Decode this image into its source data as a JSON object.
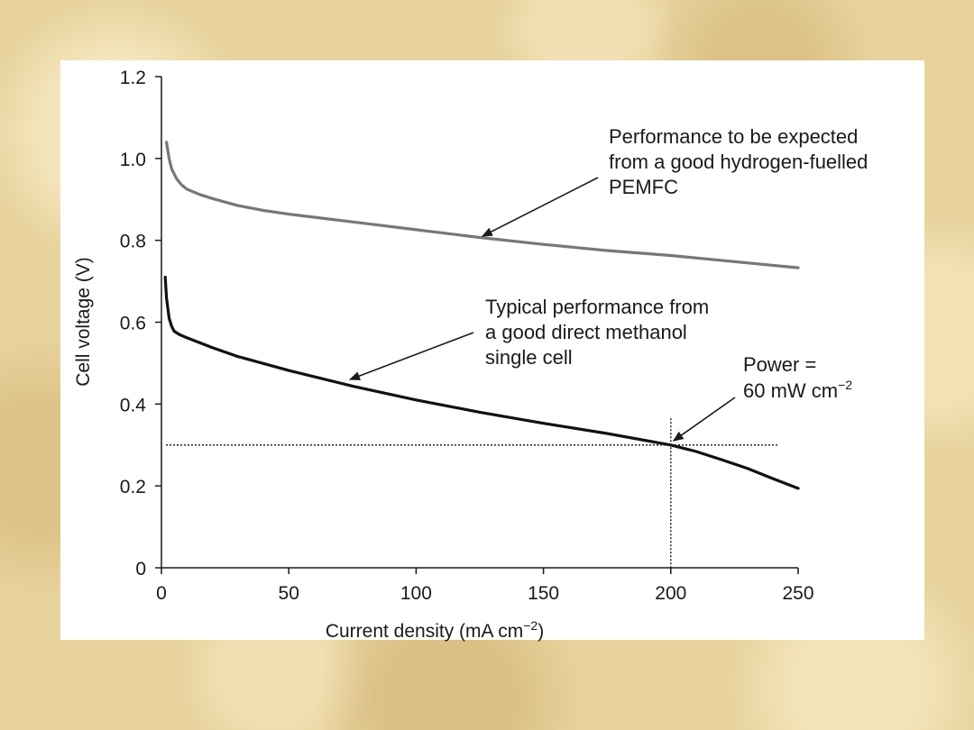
{
  "chart_data": {
    "type": "line",
    "xlabel": "Current density (mA cm",
    "xlabel_sup": "−2",
    "xlabel_end": ")",
    "ylabel": "Cell voltage (V)",
    "xlim": [
      0,
      250
    ],
    "ylim": [
      0,
      1.2
    ],
    "xticks": [
      0,
      50,
      100,
      150,
      200,
      250
    ],
    "yticks": [
      0,
      0.2,
      0.4,
      0.6,
      0.8,
      1.0,
      1.2
    ],
    "ytick_labels": [
      "0",
      "0.2",
      "0.4",
      "0.6",
      "0.8",
      "1.0",
      "1.2"
    ],
    "grid": false,
    "series": [
      {
        "name": "Hydrogen-fuelled PEMFC",
        "color": "#777777",
        "x": [
          2,
          3,
          4,
          6,
          8,
          10,
          15,
          20,
          30,
          40,
          50,
          75,
          100,
          125,
          150,
          175,
          200,
          225,
          250
        ],
        "y": [
          1.04,
          1.0,
          0.975,
          0.95,
          0.935,
          0.925,
          0.912,
          0.902,
          0.885,
          0.873,
          0.864,
          0.845,
          0.826,
          0.807,
          0.79,
          0.775,
          0.763,
          0.748,
          0.733
        ]
      },
      {
        "name": "Direct methanol single cell",
        "color": "#111111",
        "x": [
          1.5,
          2,
          3,
          4,
          5,
          7,
          10,
          15,
          20,
          30,
          50,
          75,
          100,
          125,
          150,
          175,
          200,
          210,
          220,
          230,
          240,
          250
        ],
        "y": [
          0.71,
          0.66,
          0.61,
          0.59,
          0.578,
          0.57,
          0.562,
          0.55,
          0.538,
          0.516,
          0.482,
          0.444,
          0.41,
          0.38,
          0.353,
          0.328,
          0.3,
          0.284,
          0.264,
          0.243,
          0.218,
          0.194
        ]
      }
    ],
    "reference_lines": {
      "x": 200,
      "y": 0.3
    },
    "annotations": [
      {
        "lines": [
          "Performance to be expected",
          "from a good hydrogen-fuelled",
          "PEMFC"
        ],
        "arrow_to": [
          126,
          0.81
        ]
      },
      {
        "lines": [
          "Typical performance from",
          "a good direct methanol",
          "single cell"
        ],
        "arrow_to": [
          74,
          0.46
        ]
      },
      {
        "lines": [
          "Power =",
          "60 mW cm"
        ],
        "sup": "−2",
        "arrow_to": [
          201,
          0.31
        ]
      }
    ]
  }
}
